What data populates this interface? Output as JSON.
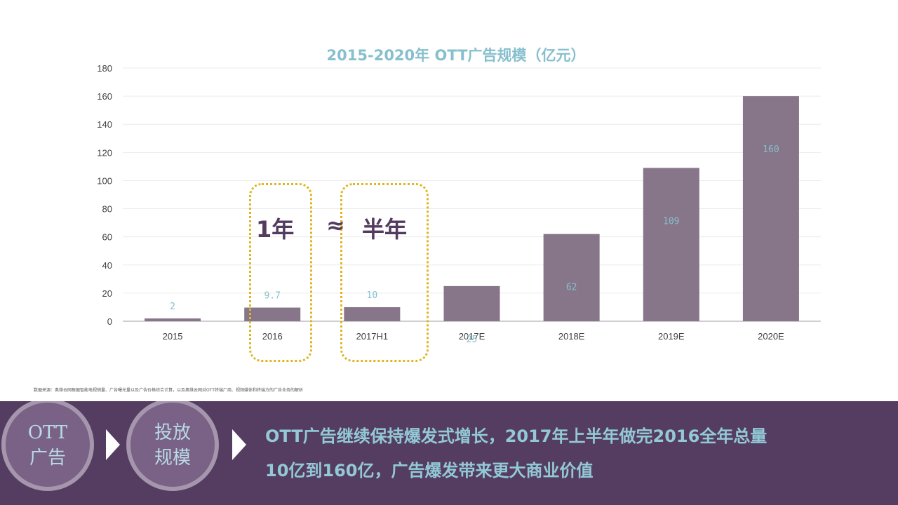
{
  "chart_data": {
    "type": "bar",
    "title": "2015-2020年 OTT广告规模（亿元）",
    "categories": [
      "2015",
      "2016",
      "2017H1",
      "2017E",
      "2018E",
      "2019E",
      "2020E"
    ],
    "values": [
      2,
      9.7,
      10,
      25,
      62,
      109,
      160
    ],
    "value_labels": [
      "2",
      "9.7",
      "10",
      "25",
      "62",
      "109",
      "160"
    ],
    "ylim": [
      0,
      180
    ],
    "yticks": [
      0,
      20,
      40,
      60,
      80,
      100,
      120,
      140,
      160,
      180
    ],
    "grid": true,
    "bar_color": "#877589",
    "label_color": "#86bfcd",
    "xlabel": "",
    "ylabel": ""
  },
  "annotation": {
    "left_text": "1年",
    "approx": "≈",
    "right_text": "半年",
    "box_color": "#e0b520"
  },
  "source_note": "数据来源：奥维云网根据智能电视销量、广告曝光量以及广告价格综合计算，以及奥维云网对OTT终端厂商、视频媒体和终端方的广告业务的解析",
  "banner": {
    "steps": [
      {
        "line1": "OTT",
        "line2": "广告"
      },
      {
        "line1": "投放",
        "line2": "规模"
      }
    ],
    "headline_line1": "OTT广告继续保持爆发式增长，2017年上半年做完2016全年总量",
    "headline_line2": "10亿到160亿，广告爆发带来更大商业价值",
    "background": "#553d61",
    "text_color": "#93c9d6"
  }
}
